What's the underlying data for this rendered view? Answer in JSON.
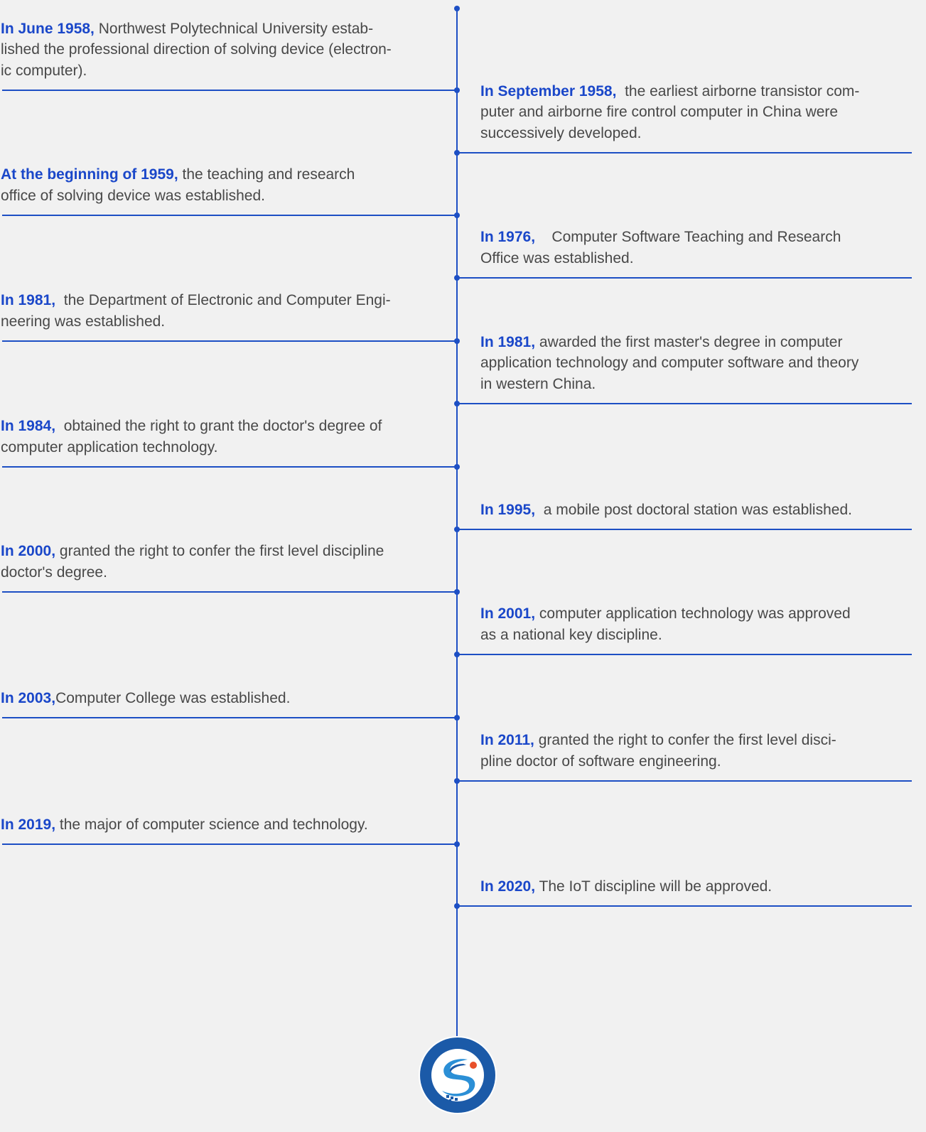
{
  "colors": {
    "accent": "#1d4fc4",
    "year_text": "#1a47c9",
    "body_text": "#484848",
    "background": "#f1f1f1"
  },
  "timeline": {
    "left": [
      {
        "year": "In June 1958,",
        "lines": [
          " Northwest Polytechnical University estab-",
          "lished the professional direction of solving device (electron-",
          "ic computer)."
        ]
      },
      {
        "year": "At the beginning of 1959,",
        "lines": [
          " the teaching and research",
          "office of solving device was established."
        ]
      },
      {
        "year": "In 1981,",
        "lines": [
          "  the Department of Electronic and Computer Engi-",
          "neering was established."
        ]
      },
      {
        "year": "In 1984,",
        "lines": [
          "  obtained the right to grant the doctor's degree of",
          "computer application technology."
        ]
      },
      {
        "year": "In 2000,",
        "lines": [
          " granted the right to confer the first level discipline",
          "doctor's degree."
        ]
      },
      {
        "year": "In 2003,",
        "lines": [
          "Computer College was established."
        ]
      },
      {
        "year": "In 2019,",
        "lines": [
          " the major of computer science and technology."
        ]
      }
    ],
    "right": [
      {
        "year": "In September 1958,",
        "lines": [
          "  the earliest airborne transistor com-",
          "puter and airborne fire control computer in China were",
          "successively developed."
        ]
      },
      {
        "year": "In 1976,",
        "lines": [
          "    Computer Software Teaching and Research",
          "Office was established."
        ]
      },
      {
        "year": "In 1981,",
        "lines": [
          " awarded the first master's degree in computer",
          "application technology and computer software and theory",
          "in western China."
        ]
      },
      {
        "year": "In 1995,",
        "lines": [
          "  a mobile post doctoral station was established."
        ]
      },
      {
        "year": "In 2001,",
        "lines": [
          " computer application technology was approved",
          "as a national key discipline."
        ]
      },
      {
        "year": "In 2011,",
        "lines": [
          " granted the right to confer the first level disci-",
          "pline doctor of software engineering."
        ]
      },
      {
        "year": "In 2020,",
        "lines": [
          " The IoT discipline will be approved."
        ]
      }
    ]
  },
  "logo": {
    "text": "SCHOOL OF COMPUTER SCIENCE,NPU",
    "chinese_text": "西北工业大学计算机学院"
  }
}
